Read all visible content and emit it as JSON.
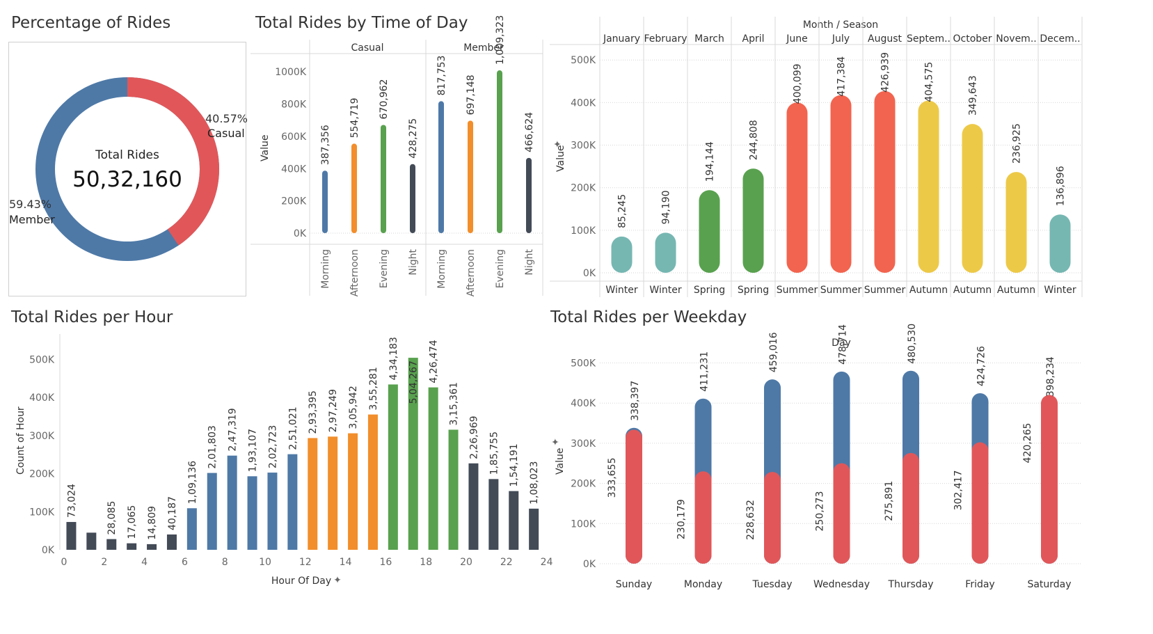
{
  "titles": {
    "donut": "Percentage of Rides",
    "time_of_day": "Total Rides by Time of Day",
    "hour": "Total Rides per Hour",
    "weekday": "Total Rides per Weekday"
  },
  "colors": {
    "member": "#4E79A7",
    "casual": "#E15759",
    "morning": "#4E79A7",
    "afternoon": "#F28E2B",
    "evening": "#59A14F",
    "night": "#434B57",
    "winter": "#76B7B2",
    "spring": "#59A14F",
    "summer": "#F2644F",
    "autumn": "#EDC948"
  },
  "chart_data": [
    {
      "type": "pie",
      "name": "donut",
      "center_label": "Total Rides",
      "center_value": "50,32,160",
      "slices": [
        {
          "label": "Casual",
          "pct_label": "40.57%",
          "value": 40.57
        },
        {
          "label": "Member",
          "pct_label": "59.43%",
          "value": 59.43
        }
      ]
    },
    {
      "type": "bar",
      "name": "time_of_day",
      "ylabel": "Value",
      "yticks": [
        "1000K",
        "800K",
        "600K",
        "400K",
        "200K",
        "0K"
      ],
      "ylim": [
        0,
        1100000
      ],
      "panels": [
        {
          "name": "Casual",
          "categories": [
            "Morning",
            "Afternoon",
            "Evening",
            "Night"
          ],
          "values": [
            387356,
            554719,
            670962,
            428275
          ],
          "labels": [
            "387,356",
            "554,719",
            "670,962",
            "428,275"
          ]
        },
        {
          "name": "Member",
          "categories": [
            "Morning",
            "Afternoon",
            "Evening",
            "Night"
          ],
          "values": [
            817753,
            697148,
            1009323,
            466624
          ],
          "labels": [
            "817,753",
            "697,148",
            "1,009,323",
            "466,624"
          ]
        }
      ]
    },
    {
      "type": "bar",
      "name": "month_season",
      "header": "Month / Season",
      "ylabel": "Value",
      "yticks": [
        "500K",
        "400K",
        "300K",
        "200K",
        "100K",
        "0K"
      ],
      "ylim": [
        0,
        520000
      ],
      "categories": [
        "January",
        "February",
        "March",
        "April",
        "June",
        "July",
        "August",
        "Septem..",
        "October",
        "Novem..",
        "Decem.."
      ],
      "seasons": [
        "Winter",
        "Winter",
        "Spring",
        "Spring",
        "Summer",
        "Summer",
        "Summer",
        "Autumn",
        "Autumn",
        "Autumn",
        "Winter"
      ],
      "values": [
        85245,
        94190,
        194144,
        244808,
        400099,
        417384,
        426939,
        404575,
        349643,
        236925,
        136896
      ],
      "labels": [
        "85,245",
        "94,190",
        "194,144",
        "244,808",
        "400,099",
        "417,384",
        "426,939",
        "404,575",
        "349,643",
        "236,925",
        "136,896"
      ]
    },
    {
      "type": "bar",
      "name": "hour",
      "xlabel": "Hour Of Day",
      "ylabel": "Count of Hour",
      "yticks": [
        "500K",
        "400K",
        "300K",
        "200K",
        "100K",
        "0K"
      ],
      "xticks": [
        "0",
        "2",
        "4",
        "6",
        "8",
        "10",
        "12",
        "14",
        "16",
        "18",
        "20",
        "22",
        "24"
      ],
      "ylim": [
        0,
        530000
      ],
      "x": [
        0,
        1,
        2,
        3,
        4,
        5,
        6,
        7,
        8,
        9,
        10,
        11,
        12,
        13,
        14,
        15,
        16,
        17,
        18,
        19,
        20,
        21,
        22,
        23
      ],
      "values": [
        73024,
        45000,
        28085,
        17065,
        14809,
        40187,
        109136,
        201803,
        247319,
        193107,
        202723,
        251021,
        293395,
        297249,
        305942,
        355281,
        434183,
        504267,
        426474,
        315361,
        226969,
        185755,
        154191,
        108023
      ],
      "labels": [
        "73,024",
        "",
        "28,085",
        "17,065",
        "14,809",
        "40,187",
        "1,09,136",
        "2,01,803",
        "2,47,319",
        "1,93,107",
        "2,02,723",
        "2,51,021",
        "2,93,395",
        "2,97,249",
        "3,05,942",
        "3,55,281",
        "4,34,183",
        "5,04,267",
        "4,26,474",
        "3,15,361",
        "2,26,969",
        "1,85,755",
        "1,54,191",
        "1,08,023"
      ]
    },
    {
      "type": "bar",
      "name": "weekday",
      "header": "Day",
      "ylabel": "Value",
      "yticks": [
        "500K",
        "400K",
        "300K",
        "200K",
        "100K",
        "0K"
      ],
      "ylim": [
        0,
        520000
      ],
      "categories": [
        "Sunday",
        "Monday",
        "Tuesday",
        "Wednesday",
        "Thursday",
        "Friday",
        "Saturday"
      ],
      "series": [
        {
          "name": "Member",
          "values": [
            338397,
            411231,
            459016,
            478714,
            480530,
            424726,
            398234
          ],
          "labels": [
            "338,397",
            "411,231",
            "459,016",
            "478,714",
            "480,530",
            "424,726",
            "398,234"
          ]
        },
        {
          "name": "Casual",
          "values": [
            333655,
            230179,
            228632,
            250273,
            275891,
            302417,
            420265
          ],
          "labels": [
            "333,655",
            "230,179",
            "228,632",
            "250,273",
            "275,891",
            "302,417",
            "420,265"
          ]
        }
      ]
    }
  ]
}
